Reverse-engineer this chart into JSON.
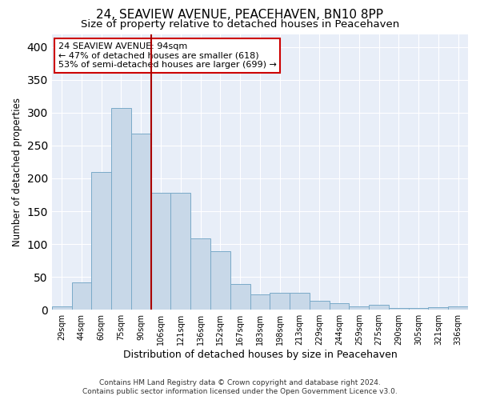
{
  "title1": "24, SEAVIEW AVENUE, PEACEHAVEN, BN10 8PP",
  "title2": "Size of property relative to detached houses in Peacehaven",
  "xlabel": "Distribution of detached houses by size in Peacehaven",
  "ylabel": "Number of detached properties",
  "categories": [
    "29sqm",
    "44sqm",
    "60sqm",
    "75sqm",
    "90sqm",
    "106sqm",
    "121sqm",
    "136sqm",
    "152sqm",
    "167sqm",
    "183sqm",
    "198sqm",
    "213sqm",
    "229sqm",
    "244sqm",
    "259sqm",
    "275sqm",
    "290sqm",
    "305sqm",
    "321sqm",
    "336sqm"
  ],
  "values": [
    5,
    42,
    210,
    307,
    268,
    178,
    178,
    109,
    89,
    39,
    23,
    26,
    26,
    14,
    10,
    5,
    7,
    3,
    2,
    4,
    5
  ],
  "bar_color": "#c8d8e8",
  "bar_edge_color": "#7aaac8",
  "vline_x": 4.5,
  "vline_color": "#aa0000",
  "annotation_text": "24 SEAVIEW AVENUE: 94sqm\n← 47% of detached houses are smaller (618)\n53% of semi-detached houses are larger (699) →",
  "annotation_box_color": "white",
  "annotation_box_edge_color": "#cc0000",
  "bg_color": "#e8eef8",
  "footer1": "Contains HM Land Registry data © Crown copyright and database right 2024.",
  "footer2": "Contains public sector information licensed under the Open Government Licence v3.0.",
  "ylim": [
    0,
    420
  ],
  "title1_fontsize": 11,
  "title2_fontsize": 9.5,
  "annotation_fontsize": 8.0,
  "ylabel_fontsize": 8.5,
  "xlabel_fontsize": 9.0,
  "tick_fontsize": 7.0,
  "footer_fontsize": 6.5
}
